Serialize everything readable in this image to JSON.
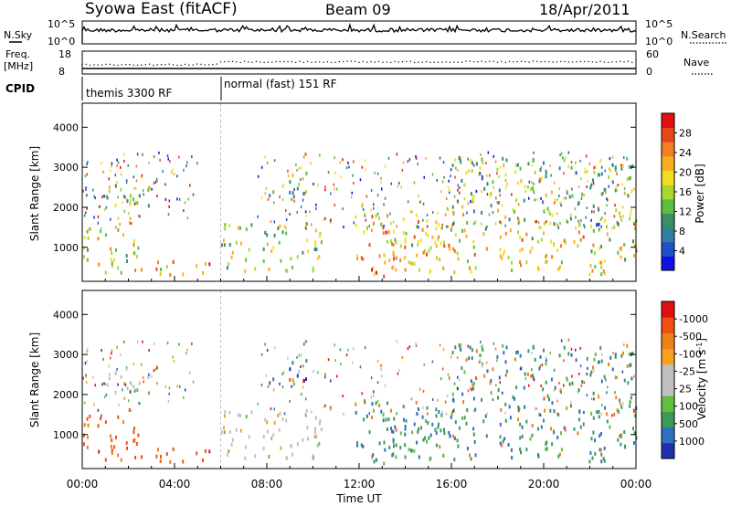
{
  "header": {
    "station": "Syowa East (fitACF)",
    "beam": "Beam 09",
    "date": "18/Apr/2011"
  },
  "top_panels": {
    "noise_left_label": "N.Sky",
    "noise_left_ticks": [
      "10^5",
      "10^0"
    ],
    "noise_right_label": "N.Search",
    "noise_right_ticks": [
      "10^5",
      "10^0"
    ],
    "freq_label_line1": "Freq.",
    "freq_label_line2": "[MHz]",
    "freq_ticks": [
      "18",
      "8"
    ],
    "nave_label": "Nave",
    "nave_ticks": [
      "60",
      "0"
    ],
    "cpid_label": "CPID",
    "cpid_segments": [
      {
        "label": "themis 3300 RF",
        "start_hour": 0
      },
      {
        "label": "normal (fast) 151 RF",
        "start_hour": 6
      }
    ]
  },
  "chart_data": [
    {
      "type": "heatmap",
      "quantity": "Power",
      "x_unit": "hours UT",
      "xlim": [
        0,
        24
      ],
      "ylim": [
        150,
        4600
      ],
      "ylabel": "Slant Range [km]",
      "y_ticks": [
        1000,
        2000,
        3000,
        4000
      ],
      "colorbar": {
        "label": "Power [dB]",
        "ticks": [
          "4",
          "8",
          "12",
          "16",
          "20",
          "24",
          "28"
        ],
        "range": [
          0,
          30
        ],
        "colors": [
          "#1010e0",
          "#2050c8",
          "#2f7fa0",
          "#3a9060",
          "#5abf40",
          "#a8d830",
          "#f2e020",
          "#f8b020",
          "#f08020",
          "#e84818",
          "#e01010"
        ]
      },
      "echo_regions": [
        {
          "t": [
            0.0,
            2.6
          ],
          "r": [
            700,
            1700
          ],
          "level": 0.55
        },
        {
          "t": [
            0.0,
            5.5
          ],
          "r": [
            350,
            700
          ],
          "level": 0.7
        },
        {
          "t": [
            1.0,
            3.0
          ],
          "r": [
            1800,
            2600
          ],
          "level": 0.45
        },
        {
          "t": [
            6.0,
            10.5
          ],
          "r": [
            450,
            1700
          ],
          "level": 0.45
        },
        {
          "t": [
            8.0,
            10.0
          ],
          "r": [
            2300,
            2900
          ],
          "level": 0.5
        },
        {
          "t": [
            11.8,
            16.5
          ],
          "r": [
            600,
            1900
          ],
          "level": 0.7
        },
        {
          "t": [
            12.5,
            14.0
          ],
          "r": [
            300,
            700
          ],
          "level": 0.75
        },
        {
          "t": [
            13.0,
            24.0
          ],
          "r": [
            350,
            1500
          ],
          "level": 0.6
        },
        {
          "t": [
            16.0,
            24.0
          ],
          "r": [
            1500,
            3300
          ],
          "level": 0.4
        }
      ]
    },
    {
      "type": "heatmap",
      "quantity": "Velocity",
      "x_unit": "hours UT",
      "xlim": [
        0,
        24
      ],
      "ylim": [
        150,
        4600
      ],
      "ylabel": "Slant Range [km]",
      "y_ticks": [
        1000,
        2000,
        3000,
        4000
      ],
      "x_ticks": [
        "00:00",
        "04:00",
        "08:00",
        "12:00",
        "16:00",
        "20:00",
        "00:00"
      ],
      "xlabel": "Time UT",
      "colorbar": {
        "label": "Velocity [m s^-1]",
        "ticks": [
          "1000",
          "500",
          "100",
          "25",
          "-25",
          "-100",
          "-500",
          "-1000"
        ],
        "colors": [
          "#2030b0",
          "#3070c0",
          "#3a9a5a",
          "#60c040",
          "#c0c0c0",
          "#c0c0c0",
          "#f8a020",
          "#f08018",
          "#f05010",
          "#e01010"
        ]
      },
      "echo_regions": [
        {
          "t": [
            0.0,
            5.5
          ],
          "r": [
            700,
            1700
          ],
          "v": "negative"
        },
        {
          "t": [
            0.0,
            5.5
          ],
          "r": [
            350,
            700
          ],
          "v": "negative"
        },
        {
          "t": [
            6.0,
            10.5
          ],
          "r": [
            450,
            1700
          ],
          "v": "near-zero"
        },
        {
          "t": [
            8.0,
            10.0
          ],
          "r": [
            2300,
            2900
          ],
          "v": "near-zero"
        },
        {
          "t": [
            11.8,
            16.5
          ],
          "r": [
            600,
            1900
          ],
          "v": "mixed"
        },
        {
          "t": [
            14.0,
            24.0
          ],
          "r": [
            400,
            1500
          ],
          "v": "positive"
        },
        {
          "t": [
            16.0,
            24.0
          ],
          "r": [
            1500,
            3300
          ],
          "v": "positive"
        }
      ]
    }
  ]
}
